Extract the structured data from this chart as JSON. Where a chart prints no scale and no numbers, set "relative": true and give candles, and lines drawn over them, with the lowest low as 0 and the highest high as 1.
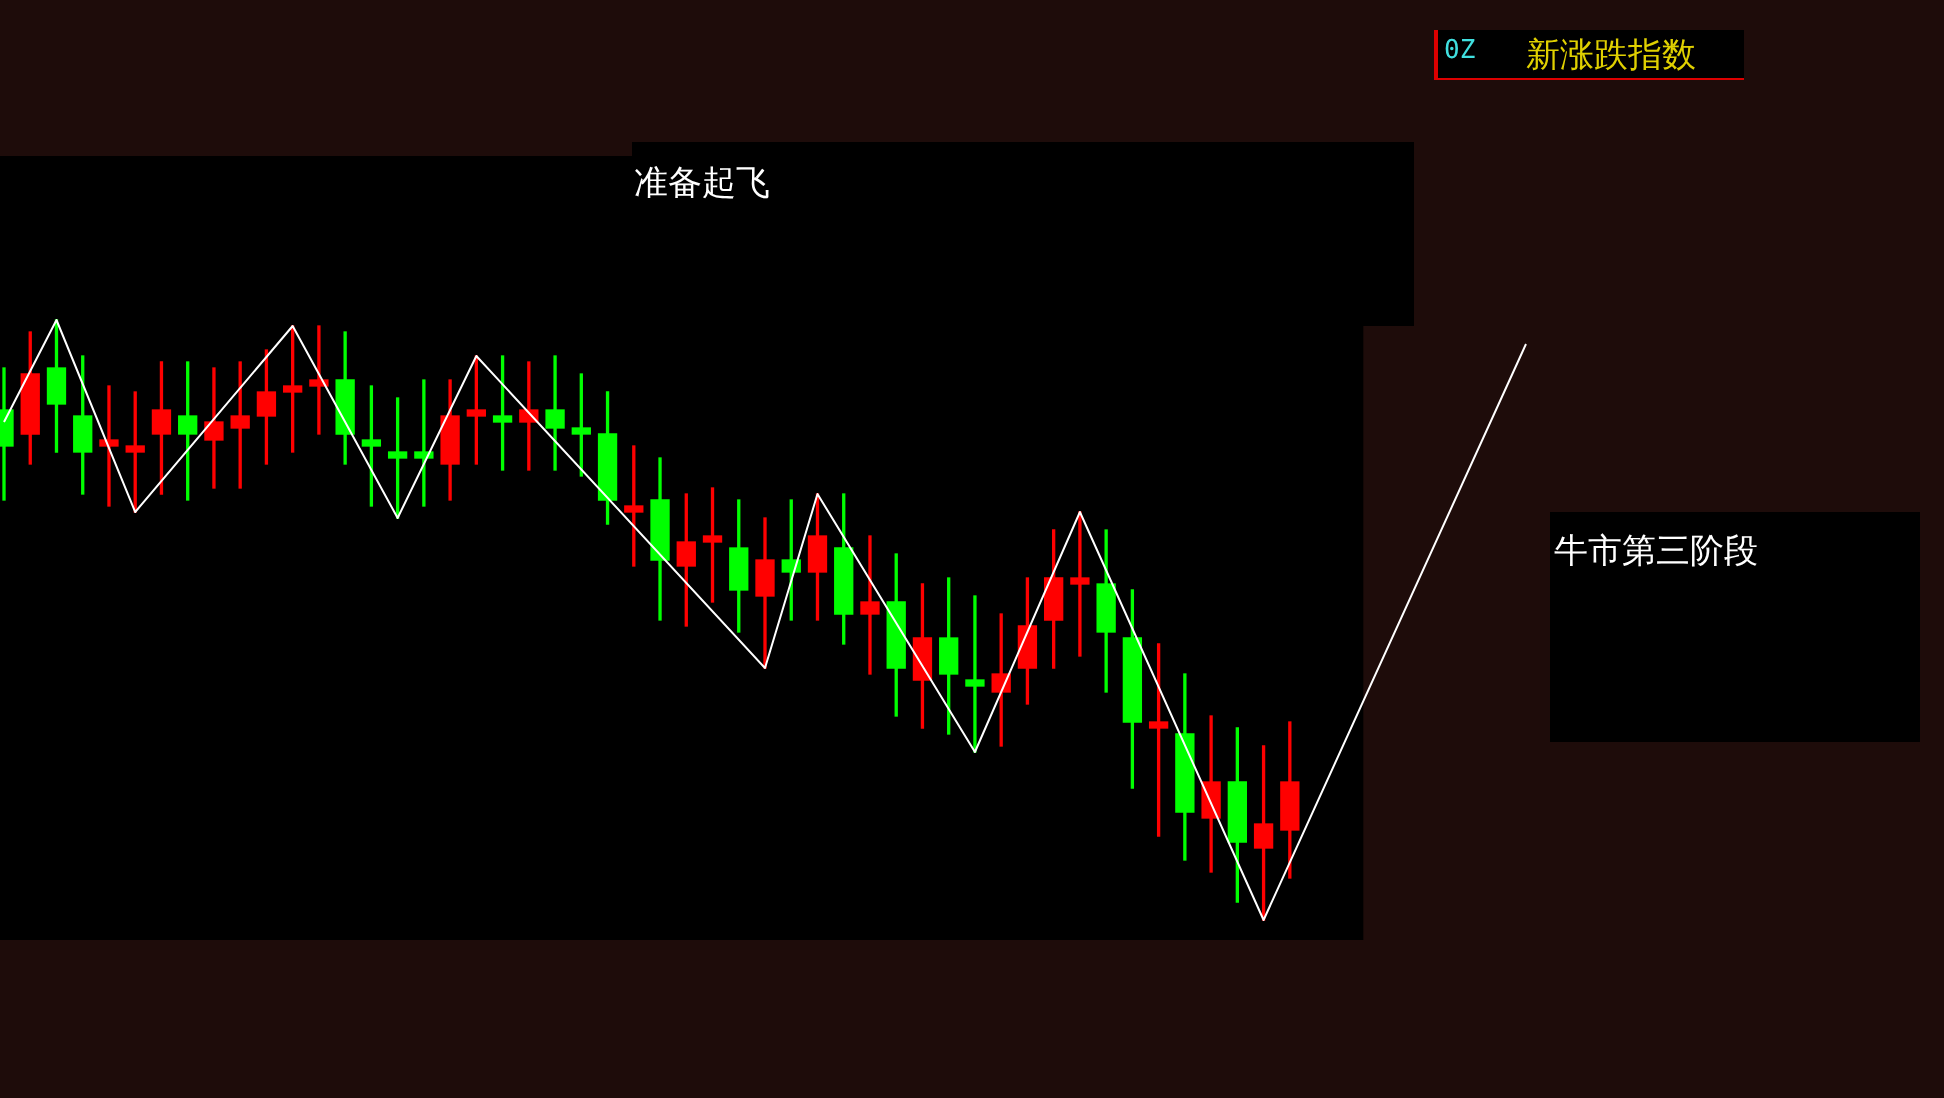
{
  "chart_data": {
    "type": "candlestick",
    "relative": true,
    "title": "新涨跌指数",
    "annotations": [
      "0Z",
      "准备起飞",
      "牛市第三阶段"
    ],
    "categories": [
      null,
      null,
      null,
      null,
      null,
      null,
      null,
      null,
      null,
      null,
      null,
      null,
      null,
      null,
      null,
      null,
      null,
      null,
      null,
      null,
      null,
      null,
      null,
      null,
      null,
      null,
      null,
      null,
      null,
      null,
      null,
      null,
      null,
      null,
      null,
      null,
      null,
      null,
      null,
      null,
      null,
      null,
      null,
      null,
      null,
      null,
      null,
      null,
      null,
      null,
      null,
      null,
      null,
      null,
      null,
      null,
      null,
      null,
      null
    ],
    "ohlc": [
      [
        0.85,
        0.92,
        0.7,
        0.79
      ],
      [
        0.81,
        0.98,
        0.76,
        0.91
      ],
      [
        0.92,
        1,
        0.78,
        0.86
      ],
      [
        0.84,
        0.94,
        0.71,
        0.78
      ],
      [
        0.79,
        0.89,
        0.69,
        0.8
      ],
      [
        0.78,
        0.88,
        0.68,
        0.79
      ],
      [
        0.81,
        0.93,
        0.71,
        0.85
      ],
      [
        0.84,
        0.93,
        0.7,
        0.81
      ],
      [
        0.8,
        0.92,
        0.72,
        0.83
      ],
      [
        0.82,
        0.93,
        0.72,
        0.84
      ],
      [
        0.84,
        0.95,
        0.76,
        0.88
      ],
      [
        0.88,
        0.99,
        0.78,
        0.89
      ],
      [
        0.89,
        0.99,
        0.81,
        0.9
      ],
      [
        0.9,
        0.98,
        0.76,
        0.81
      ],
      [
        0.8,
        0.89,
        0.69,
        0.79
      ],
      [
        0.78,
        0.87,
        0.67,
        0.77
      ],
      [
        0.78,
        0.9,
        0.69,
        0.77
      ],
      [
        0.76,
        0.9,
        0.7,
        0.84
      ],
      [
        0.84,
        0.94,
        0.76,
        0.85
      ],
      [
        0.84,
        0.94,
        0.75,
        0.83
      ],
      [
        0.83,
        0.93,
        0.75,
        0.85
      ],
      [
        0.85,
        0.94,
        0.75,
        0.82
      ],
      [
        0.82,
        0.91,
        0.74,
        0.81
      ],
      [
        0.81,
        0.88,
        0.66,
        0.7
      ],
      [
        0.68,
        0.79,
        0.59,
        0.69
      ],
      [
        0.7,
        0.77,
        0.5,
        0.6
      ],
      [
        0.59,
        0.71,
        0.49,
        0.63
      ],
      [
        0.63,
        0.72,
        0.53,
        0.64
      ],
      [
        0.62,
        0.7,
        0.48,
        0.55
      ],
      [
        0.54,
        0.67,
        0.42,
        0.6
      ],
      [
        0.6,
        0.7,
        0.5,
        0.58
      ],
      [
        0.58,
        0.71,
        0.5,
        0.64
      ],
      [
        0.62,
        0.71,
        0.46,
        0.51
      ],
      [
        0.51,
        0.64,
        0.41,
        0.53
      ],
      [
        0.53,
        0.61,
        0.34,
        0.42
      ],
      [
        0.4,
        0.56,
        0.32,
        0.47
      ],
      [
        0.47,
        0.57,
        0.31,
        0.41
      ],
      [
        0.4,
        0.54,
        0.28,
        0.39
      ],
      [
        0.38,
        0.51,
        0.29,
        0.41
      ],
      [
        0.42,
        0.57,
        0.36,
        0.49
      ],
      [
        0.5,
        0.65,
        0.42,
        0.57
      ],
      [
        0.56,
        0.68,
        0.44,
        0.57
      ],
      [
        0.56,
        0.65,
        0.38,
        0.48
      ],
      [
        0.47,
        0.55,
        0.22,
        0.33
      ],
      [
        0.32,
        0.46,
        0.14,
        0.33
      ],
      [
        0.31,
        0.41,
        0.1,
        0.18
      ],
      [
        0.17,
        0.34,
        0.08,
        0.23
      ],
      [
        0.23,
        0.32,
        0.03,
        0.13
      ],
      [
        0.12,
        0.29,
        0,
        0.16
      ],
      [
        0.15,
        0.33,
        0.07,
        0.23
      ],
      null,
      null,
      null,
      null,
      null,
      null,
      null,
      null,
      null
    ],
    "colors": [
      "#00ff00",
      "#ff0000",
      "#00ff00",
      "#00ff00",
      "#ff0000",
      "#ff0000",
      "#ff0000",
      "#00ff00",
      "#ff0000",
      "#ff0000",
      "#ff0000",
      "#ff0000",
      "#ff0000",
      "#00ff00",
      "#00ff00",
      "#00ff00",
      "#00ff00",
      "#ff0000",
      "#ff0000",
      "#00ff00",
      "#ff0000",
      "#00ff00",
      "#00ff00",
      "#00ff00",
      "#ff0000",
      "#00ff00",
      "#ff0000",
      "#ff0000",
      "#00ff00",
      "#ff0000",
      "#00ff00",
      "#ff0000",
      "#00ff00",
      "#ff0000",
      "#00ff00",
      "#ff0000",
      "#00ff00",
      "#00ff00",
      "#ff0000",
      "#ff0000",
      "#ff0000",
      "#ff0000",
      "#00ff00",
      "#00ff00",
      "#ff0000",
      "#00ff00",
      "#ff0000",
      "#00ff00",
      "#ff0000",
      "#ff0000",
      null,
      null,
      null,
      null,
      null,
      null,
      null,
      null,
      null
    ],
    "series": [
      {
        "type": "line",
        "color": "#ffffff",
        "values": [
          0.83,
          null,
          1,
          null,
          null,
          0.68,
          null,
          null,
          null,
          null,
          null,
          0.99,
          null,
          null,
          null,
          0.67,
          null,
          null,
          0.94,
          null,
          null,
          null,
          null,
          null,
          null,
          null,
          null,
          null,
          null,
          0.42,
          null,
          0.71,
          null,
          null,
          null,
          null,
          null,
          0.28,
          null,
          null,
          null,
          0.68,
          null,
          null,
          null,
          null,
          null,
          null,
          0,
          null,
          null,
          null,
          null,
          null,
          null,
          null,
          null,
          null,
          0.96
        ]
      }
    ]
  }
}
